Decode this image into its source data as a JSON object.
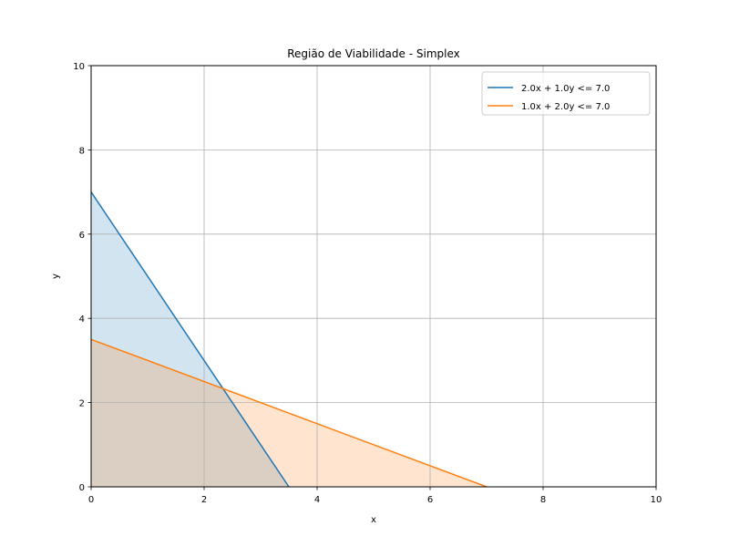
{
  "chart_data": {
    "type": "area",
    "title": "Região de Viabilidade - Simplex",
    "xlabel": "x",
    "ylabel": "y",
    "xlim": [
      0,
      10
    ],
    "ylim": [
      0,
      10
    ],
    "xticks": [
      0,
      2,
      4,
      6,
      8,
      10
    ],
    "yticks": [
      0,
      2,
      4,
      6,
      8,
      10
    ],
    "grid": true,
    "legend_position": "top-right",
    "series": [
      {
        "name": "2.0x + 1.0y <= 7.0",
        "color": "#1f77b4",
        "fill_color": "#1f77b4",
        "fill_opacity": 0.2,
        "x": [
          0,
          3.5
        ],
        "y": [
          7,
          0
        ]
      },
      {
        "name": "1.0x + 2.0y <= 7.0",
        "color": "#ff7f0e",
        "fill_color": "#ff7f0e",
        "fill_opacity": 0.2,
        "x": [
          0,
          7
        ],
        "y": [
          3.5,
          0
        ]
      }
    ]
  }
}
